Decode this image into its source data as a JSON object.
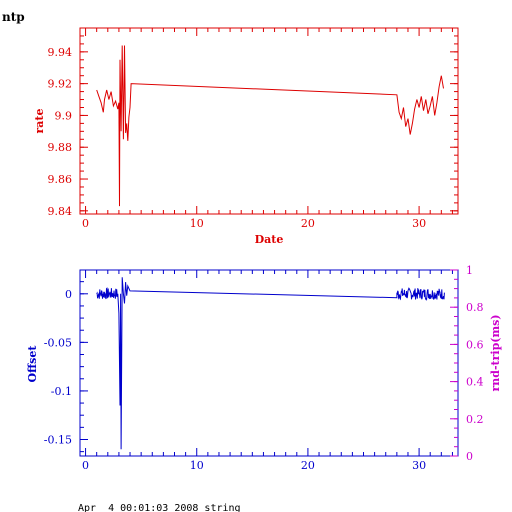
{
  "colors": {
    "top": "#dd0000",
    "bottom": "#0000cc",
    "right_axis": "#cc00cc",
    "text": "#000000"
  },
  "footer": "Apr  4 00:01:03 2008 string",
  "chart_data": [
    {
      "type": "line",
      "title": "ntp",
      "xlabel": "Date",
      "ylabel": "rate",
      "xlim": [
        -0.5,
        33.5
      ],
      "ylim": [
        9.838,
        9.955
      ],
      "x_ticks": [
        0,
        10,
        20,
        30
      ],
      "y_ticks": [
        9.84,
        9.86,
        9.88,
        9.9,
        9.92,
        9.94
      ],
      "y_tick_labels": [
        "9.84",
        "9.86",
        "9.88",
        "9.9",
        "9.92",
        "9.94"
      ],
      "series": [
        {
          "values": [
            [
              1.0,
              9.916
            ],
            [
              1.2,
              9.912
            ],
            [
              1.4,
              9.908
            ],
            [
              1.6,
              9.902
            ],
            [
              1.7,
              9.91
            ],
            [
              1.9,
              9.916
            ],
            [
              2.1,
              9.91
            ],
            [
              2.3,
              9.915
            ],
            [
              2.5,
              9.906
            ],
            [
              2.7,
              9.909
            ],
            [
              2.9,
              9.904
            ],
            [
              3.0,
              9.908
            ],
            [
              3.05,
              9.843
            ],
            [
              3.1,
              9.935
            ],
            [
              3.2,
              9.89
            ],
            [
              3.3,
              9.944
            ],
            [
              3.4,
              9.885
            ],
            [
              3.5,
              9.944
            ],
            [
              3.6,
              9.889
            ],
            [
              3.7,
              9.895
            ],
            [
              3.8,
              9.884
            ],
            [
              3.9,
              9.899
            ],
            [
              4.0,
              9.905
            ],
            [
              4.1,
              9.92
            ],
            [
              28.0,
              9.913
            ],
            [
              28.2,
              9.902
            ],
            [
              28.4,
              9.898
            ],
            [
              28.6,
              9.905
            ],
            [
              28.8,
              9.893
            ],
            [
              29.0,
              9.898
            ],
            [
              29.2,
              9.888
            ],
            [
              29.4,
              9.895
            ],
            [
              29.6,
              9.904
            ],
            [
              29.8,
              9.91
            ],
            [
              30.0,
              9.905
            ],
            [
              30.2,
              9.912
            ],
            [
              30.4,
              9.903
            ],
            [
              30.6,
              9.91
            ],
            [
              30.8,
              9.901
            ],
            [
              31.0,
              9.906
            ],
            [
              31.2,
              9.912
            ],
            [
              31.4,
              9.9
            ],
            [
              31.6,
              9.908
            ],
            [
              31.8,
              9.918
            ],
            [
              32.0,
              9.925
            ],
            [
              32.2,
              9.917
            ]
          ]
        }
      ]
    },
    {
      "type": "line",
      "title": "",
      "xlabel": "",
      "ylabel": "Offset",
      "y2label": "rnd-trip(ms)",
      "xlim": [
        -0.5,
        33.5
      ],
      "ylim": [
        -0.167,
        0.0245
      ],
      "y2lim": [
        0,
        1
      ],
      "x_ticks": [
        0,
        10,
        20,
        30
      ],
      "y_ticks": [
        0,
        -0.05,
        -0.1,
        -0.15
      ],
      "y_tick_labels": [
        "0",
        "-0.05",
        "-0.1",
        "-0.15"
      ],
      "y2_ticks": [
        0,
        0.2,
        0.4,
        0.6,
        0.8,
        1
      ],
      "y2_tick_labels": [
        "0",
        "0.2",
        "0.4",
        "0.6",
        "0.8",
        "1"
      ],
      "series": [
        {
          "noise_ranges": [
            [
              1.0,
              2.9
            ],
            [
              28.0,
              32.3
            ]
          ],
          "noise_amplitude": 0.006,
          "values": [
            [
              2.9,
              0.0
            ],
            [
              3.0,
              -0.02
            ],
            [
              3.1,
              -0.115
            ],
            [
              3.15,
              0.0
            ],
            [
              3.2,
              -0.16
            ],
            [
              3.3,
              0.017
            ],
            [
              3.4,
              0.0
            ],
            [
              3.5,
              -0.01
            ],
            [
              3.6,
              0.012
            ],
            [
              3.7,
              -0.002
            ],
            [
              3.8,
              0.008
            ],
            [
              4.0,
              0.003
            ],
            [
              28.0,
              -0.004
            ]
          ]
        }
      ]
    }
  ]
}
